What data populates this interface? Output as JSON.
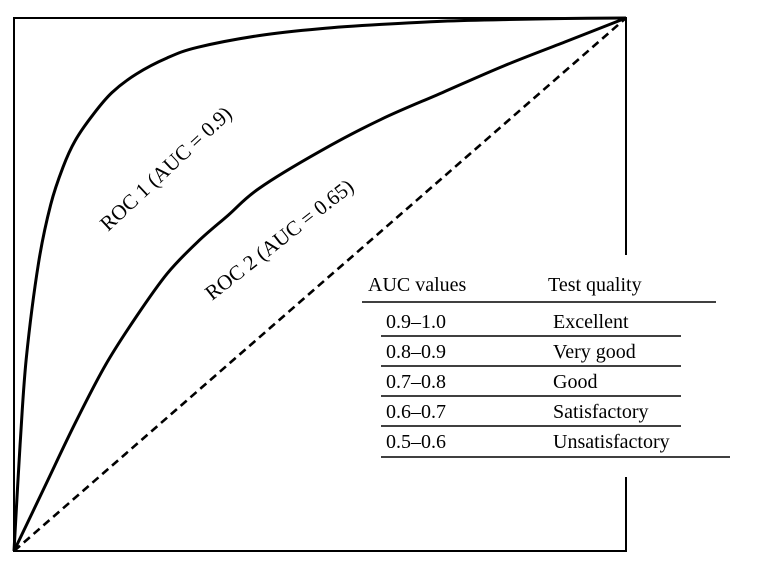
{
  "chart_data": {
    "type": "line",
    "title": "",
    "xlabel": "",
    "ylabel": "",
    "xlim": [
      0,
      1
    ],
    "ylim": [
      0,
      1
    ],
    "grid": false,
    "series": [
      {
        "name": "ROC 1 (AUC = 0.9)",
        "style": "solid",
        "x": [
          0,
          0.01,
          0.02,
          0.04,
          0.06,
          0.08,
          0.1,
          0.13,
          0.16,
          0.2,
          0.25,
          0.3,
          0.4,
          0.5,
          0.6,
          0.7,
          0.8,
          0.9,
          1.0
        ],
        "y": [
          0,
          0.2,
          0.36,
          0.54,
          0.65,
          0.72,
          0.77,
          0.82,
          0.86,
          0.895,
          0.925,
          0.945,
          0.967,
          0.98,
          0.988,
          0.994,
          0.997,
          0.999,
          1.0
        ]
      },
      {
        "name": "ROC 2 (AUC = 0.65)",
        "style": "solid",
        "x": [
          0,
          0.05,
          0.1,
          0.15,
          0.2,
          0.25,
          0.3,
          0.35,
          0.4,
          0.5,
          0.6,
          0.7,
          0.8,
          0.9,
          1.0
        ],
        "y": [
          0,
          0.12,
          0.24,
          0.35,
          0.44,
          0.52,
          0.58,
          0.63,
          0.68,
          0.75,
          0.81,
          0.86,
          0.91,
          0.955,
          1.0
        ]
      },
      {
        "name": "",
        "style": "dashed",
        "x": [
          0,
          1
        ],
        "y": [
          0,
          1
        ]
      }
    ],
    "annotations": [
      {
        "text": "ROC 1 (AUC = 0.9)",
        "series": 0
      },
      {
        "text": "ROC 2 (AUC = 0.65)",
        "series": 1
      }
    ],
    "table": {
      "headers": [
        "AUC values",
        "Test quality"
      ],
      "rows": [
        [
          "0.9–1.0",
          "Excellent"
        ],
        [
          "0.8–0.9",
          "Very good"
        ],
        [
          "0.7–0.8",
          "Good"
        ],
        [
          "0.6–0.7",
          "Satisfactory"
        ],
        [
          "0.5–0.6",
          "Unsatisfactory"
        ]
      ]
    }
  }
}
